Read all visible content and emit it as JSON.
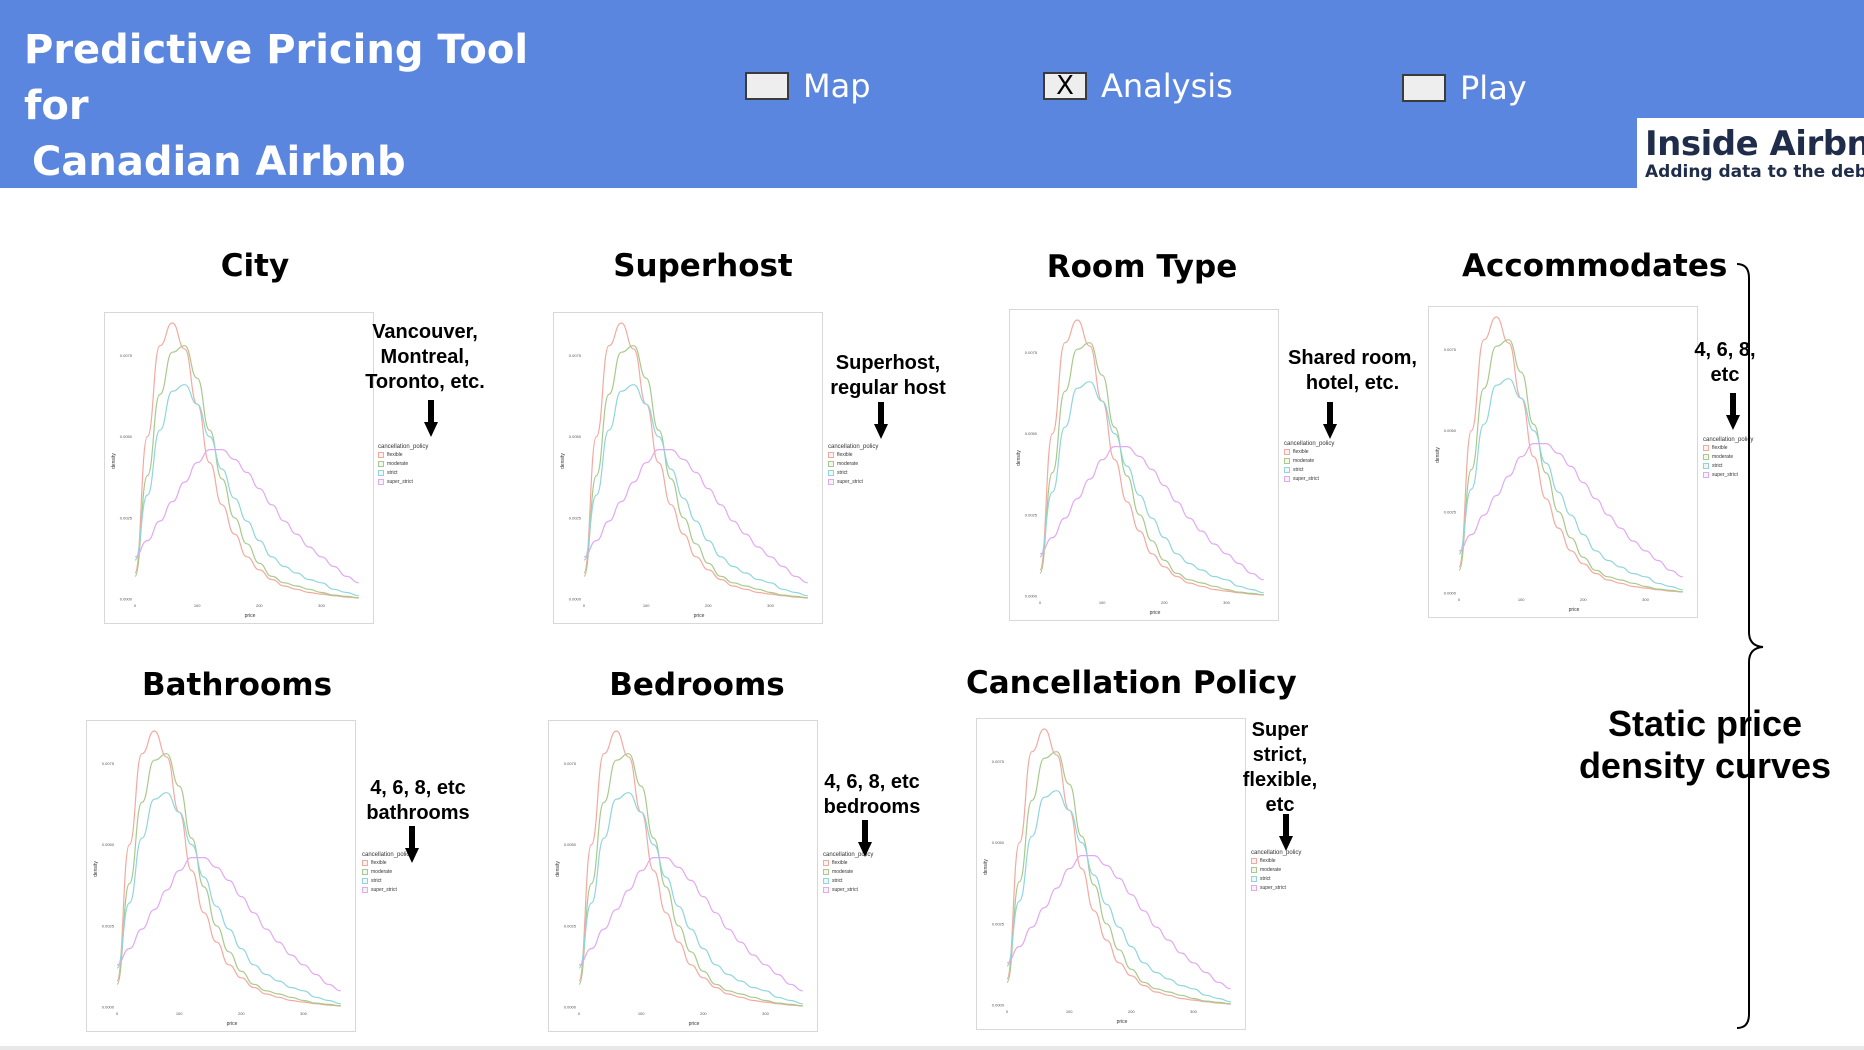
{
  "header": {
    "title_line1": "Predictive Pricing Tool for",
    "title_line2": "Canadian Airbnb Listings",
    "tabs": [
      {
        "label": "Map",
        "checked": false,
        "mark": ""
      },
      {
        "label": "Analysis",
        "checked": true,
        "mark": "X"
      },
      {
        "label": "Play",
        "checked": false,
        "mark": ""
      }
    ],
    "logo": {
      "name": "Inside Airbnb",
      "tagline": "Adding data to the debate"
    }
  },
  "panels": [
    {
      "title": "City",
      "note": [
        "Vancouver,",
        "Montreal,",
        "Toronto, etc."
      ]
    },
    {
      "title": "Superhost",
      "note": [
        "Superhost,",
        "regular host"
      ]
    },
    {
      "title": "Room Type",
      "note": [
        "Shared room,",
        "hotel, etc."
      ]
    },
    {
      "title": "Accommodates",
      "note": [
        "4, 6, 8,",
        "etc"
      ]
    },
    {
      "title": "Bathrooms",
      "note": [
        "4, 6, 8, etc",
        "bathrooms"
      ]
    },
    {
      "title": "Bedrooms",
      "note": [
        "4, 6, 8, etc",
        "bedrooms"
      ]
    },
    {
      "title": "Cancellation Policy",
      "note": [
        "Super",
        "strict,",
        "flexible,",
        "etc"
      ]
    }
  ],
  "plot": {
    "xlabel": "price",
    "ylabel": "density",
    "x_ticks": [
      "0",
      "100",
      "200",
      "300"
    ],
    "y_ticks": [
      "0.0000",
      "0.0025",
      "0.0050",
      "0.0075"
    ],
    "legend_title": "cancellation_policy",
    "legend_items": [
      "flexible",
      "moderate",
      "strict",
      "super_strict"
    ],
    "colors": {
      "flexible": "#f4a9a0",
      "moderate": "#a9c98c",
      "strict": "#8fd6dc",
      "super_strict": "#e2a9f2"
    }
  },
  "chart_data": {
    "type": "line",
    "title": "",
    "xlabel": "price",
    "ylabel": "density",
    "xlim": [
      0,
      370
    ],
    "ylim": [
      0,
      0.0085
    ],
    "legend_title": "cancellation_policy",
    "series": [
      {
        "name": "flexible",
        "x": [
          0,
          20,
          40,
          60,
          80,
          100,
          120,
          140,
          160,
          180,
          200,
          220,
          240,
          260,
          280,
          300,
          320,
          340,
          360
        ],
        "values": [
          0.0008,
          0.005,
          0.0078,
          0.0085,
          0.0077,
          0.006,
          0.0042,
          0.0029,
          0.002,
          0.0013,
          0.0009,
          0.0006,
          0.0004,
          0.0003,
          0.0002,
          0.00015,
          0.0001,
          6e-05,
          3e-05
        ]
      },
      {
        "name": "moderate",
        "x": [
          0,
          20,
          40,
          60,
          80,
          100,
          120,
          140,
          160,
          180,
          200,
          220,
          240,
          260,
          280,
          300,
          320,
          340,
          360
        ],
        "values": [
          0.0007,
          0.0038,
          0.0063,
          0.0076,
          0.0078,
          0.0068,
          0.0052,
          0.0037,
          0.0025,
          0.0017,
          0.0011,
          0.0007,
          0.0005,
          0.0004,
          0.0003,
          0.0002,
          0.00012,
          8e-05,
          4e-05
        ]
      },
      {
        "name": "strict",
        "x": [
          0,
          20,
          40,
          60,
          80,
          100,
          120,
          140,
          160,
          180,
          200,
          220,
          240,
          260,
          280,
          300,
          320,
          340,
          360
        ],
        "values": [
          0.0012,
          0.0032,
          0.0052,
          0.0064,
          0.0066,
          0.006,
          0.005,
          0.004,
          0.0031,
          0.0024,
          0.0018,
          0.0013,
          0.001,
          0.0008,
          0.0006,
          0.0005,
          0.0003,
          0.0002,
          0.0001
        ]
      },
      {
        "name": "super_strict",
        "x": [
          0,
          20,
          40,
          60,
          80,
          100,
          120,
          140,
          160,
          180,
          200,
          220,
          240,
          260,
          280,
          300,
          320,
          340,
          360
        ],
        "values": [
          0.0013,
          0.0018,
          0.0024,
          0.003,
          0.0036,
          0.0042,
          0.0046,
          0.0046,
          0.0043,
          0.0039,
          0.0034,
          0.0029,
          0.0024,
          0.002,
          0.0016,
          0.0013,
          0.001,
          0.0007,
          0.0005
        ]
      }
    ]
  },
  "annotation": {
    "line1": "Static price",
    "line2": "density curves"
  }
}
